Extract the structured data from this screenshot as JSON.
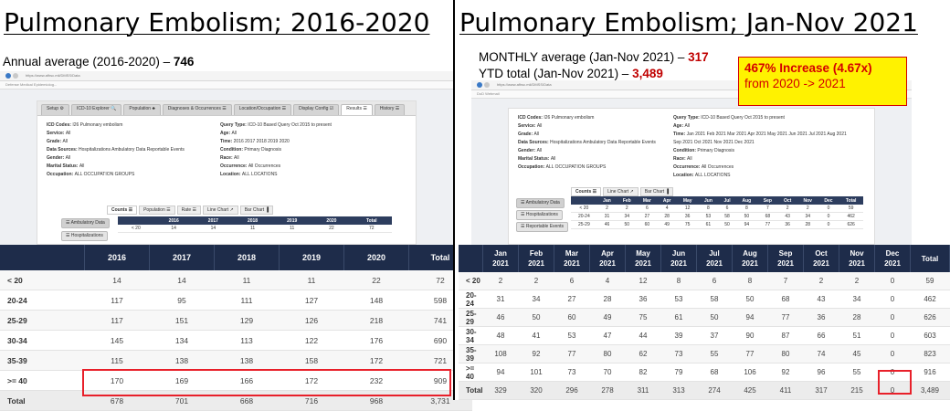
{
  "left": {
    "title": "Pulmonary Embolism; 2016-2020",
    "annual_label": "Annual average (2016-2020) – ",
    "annual_value": "746",
    "browser": {
      "url": "https://www.afhsc.mil/DMSS/Data",
      "bookmark": "Defense Medical Epidemiolog..."
    },
    "app_tabs": [
      "Setup ⚙",
      "ICD-10 Explorer 🔍",
      "Population ♣",
      "Diagnoses & Occurrences ☰",
      "Location/Occupation ☰",
      "Display Config ☑",
      "Results ☰",
      "History ☰"
    ],
    "info_left": [
      {
        "label": "ICD Codes:",
        "value": "I26 Pulmonary embolism"
      },
      {
        "label": "Service:",
        "value": "All"
      },
      {
        "label": "Grade:",
        "value": "All"
      },
      {
        "label": "Data Sources:",
        "value": "Hospitalizations Ambulatory Data Reportable Events"
      },
      {
        "label": "Gender:",
        "value": "All"
      },
      {
        "label": "Marital Status:",
        "value": "All"
      },
      {
        "label": "Occupation:",
        "value": "ALL OCCUPATION GROUPS"
      }
    ],
    "info_right": [
      {
        "label": "Query Type:",
        "value": "ICD-10 Based Query Oct 2015 to present"
      },
      {
        "label": "Age:",
        "value": "All"
      },
      {
        "label": "Time:",
        "value": "2016 2017 2018 2019 2020"
      },
      {
        "label": "Condition:",
        "value": "Primary Diagnosis"
      },
      {
        "label": "Race:",
        "value": "All"
      },
      {
        "label": "Occurrence:",
        "value": "All Occurrences"
      },
      {
        "label": "Location:",
        "value": "ALL LOCATIONS"
      }
    ],
    "chart_tabs": [
      "Counts ☰",
      "Population ☰",
      "Rate ☰",
      "Line Chart ↗",
      "Bar Chart ▐"
    ],
    "side_buttons": [
      "☰ Ambulatory Data",
      "☰ Hospitalizations"
    ],
    "mini_headers": [
      "",
      "2016",
      "2017",
      "2018",
      "2019",
      "2020",
      "Total"
    ],
    "mini_row": [
      "< 20",
      "14",
      "14",
      "11",
      "11",
      "22",
      "72"
    ],
    "table": {
      "headers": [
        "",
        "2016",
        "2017",
        "2018",
        "2019",
        "2020",
        "Total"
      ],
      "rows": [
        [
          "< 20",
          "14",
          "14",
          "11",
          "11",
          "22",
          "72"
        ],
        [
          "20-24",
          "117",
          "95",
          "111",
          "127",
          "148",
          "598"
        ],
        [
          "25-29",
          "117",
          "151",
          "129",
          "126",
          "218",
          "741"
        ],
        [
          "30-34",
          "145",
          "134",
          "113",
          "122",
          "176",
          "690"
        ],
        [
          "35-39",
          "115",
          "138",
          "138",
          "158",
          "172",
          "721"
        ],
        [
          ">= 40",
          "170",
          "169",
          "166",
          "172",
          "232",
          "909"
        ],
        [
          "Total",
          "678",
          "701",
          "668",
          "716",
          "968",
          "3,731"
        ]
      ]
    },
    "highlight_color": "#e8202a"
  },
  "right": {
    "title": "Pulmonary Embolism; Jan-Nov 2021",
    "monthly_label": "MONTHLY average (Jan-Nov 2021) – ",
    "monthly_value": "317",
    "ytd_label": "YTD total (Jan-Nov 2021) – ",
    "ytd_value": "3,489",
    "callout_line1": "467% Increase (4.67x)",
    "callout_line2": "from 2020 -> 2021",
    "browser": {
      "url": "https://www.afhsc.mil/DMSS/Data",
      "bookmark": "DoD Webmail"
    },
    "info_left": [
      {
        "label": "ICD Codes:",
        "value": "I26 Pulmonary embolism"
      },
      {
        "label": "Service:",
        "value": "All"
      },
      {
        "label": "Grade:",
        "value": "All"
      },
      {
        "label": "Data Sources:",
        "value": "Hospitalizations Ambulatory Data Reportable Events"
      },
      {
        "label": "Gender:",
        "value": "All"
      },
      {
        "label": "Marital Status:",
        "value": "All"
      },
      {
        "label": "Occupation:",
        "value": "ALL OCCUPATION GROUPS"
      }
    ],
    "info_right": [
      {
        "label": "Query Type:",
        "value": "ICD-10 Based Query Oct 2015 to present"
      },
      {
        "label": "Age:",
        "value": "All"
      },
      {
        "label": "Time:",
        "value": "Jan 2021 Feb 2021 Mar 2021 Apr 2021 May 2021 Jun 2021 Jul 2021 Aug 2021"
      },
      {
        "label": "",
        "value": "Sep 2021 Oct 2021 Nov 2021 Dec 2021"
      },
      {
        "label": "Condition:",
        "value": "Primary Diagnosis"
      },
      {
        "label": "Race:",
        "value": "All"
      },
      {
        "label": "Occurrence:",
        "value": "All Occurrences"
      },
      {
        "label": "Location:",
        "value": "ALL LOCATIONS"
      }
    ],
    "chart_tabs": [
      "Counts ☰",
      "Line Chart ↗",
      "Bar Chart ▐"
    ],
    "side_buttons": [
      "☰ Ambulatory Data",
      "☰ Hospitalizations",
      "☰ Reportable Events"
    ],
    "mini_headers": [
      "",
      "Jan",
      "Feb",
      "Mar",
      "Apr",
      "May",
      "Jun",
      "Jul",
      "Aug",
      "Sep",
      "Oct",
      "Nov",
      "Dec",
      "Total"
    ],
    "mini_rows": [
      [
        "< 20",
        "2",
        "2",
        "6",
        "4",
        "12",
        "8",
        "6",
        "8",
        "7",
        "2",
        "2",
        "0",
        "59"
      ],
      [
        "20-24",
        "31",
        "34",
        "27",
        "28",
        "36",
        "53",
        "58",
        "50",
        "68",
        "43",
        "34",
        "0",
        "462"
      ],
      [
        "25-29",
        "46",
        "50",
        "60",
        "49",
        "75",
        "61",
        "50",
        "94",
        "77",
        "36",
        "28",
        "0",
        "626"
      ]
    ],
    "table": {
      "headers": [
        {
          "m": "",
          "y": ""
        },
        {
          "m": "Jan",
          "y": "2021"
        },
        {
          "m": "Feb",
          "y": "2021"
        },
        {
          "m": "Mar",
          "y": "2021"
        },
        {
          "m": "Apr",
          "y": "2021"
        },
        {
          "m": "May",
          "y": "2021"
        },
        {
          "m": "Jun",
          "y": "2021"
        },
        {
          "m": "Jul",
          "y": "2021"
        },
        {
          "m": "Aug",
          "y": "2021"
        },
        {
          "m": "Sep",
          "y": "2021"
        },
        {
          "m": "Oct",
          "y": "2021"
        },
        {
          "m": "Nov",
          "y": "2021"
        },
        {
          "m": "Dec",
          "y": "2021"
        },
        {
          "m": "Total",
          "y": ""
        }
      ],
      "rows": [
        [
          "< 20",
          "2",
          "2",
          "6",
          "4",
          "12",
          "8",
          "6",
          "8",
          "7",
          "2",
          "2",
          "0",
          "59"
        ],
        [
          "20-24",
          "31",
          "34",
          "27",
          "28",
          "36",
          "53",
          "58",
          "50",
          "68",
          "43",
          "34",
          "0",
          "462"
        ],
        [
          "25-29",
          "46",
          "50",
          "60",
          "49",
          "75",
          "61",
          "50",
          "94",
          "77",
          "36",
          "28",
          "0",
          "626"
        ],
        [
          "30-34",
          "48",
          "41",
          "53",
          "47",
          "44",
          "39",
          "37",
          "90",
          "87",
          "66",
          "51",
          "0",
          "603"
        ],
        [
          "35-39",
          "108",
          "92",
          "77",
          "80",
          "62",
          "73",
          "55",
          "77",
          "80",
          "74",
          "45",
          "0",
          "823"
        ],
        [
          ">= 40",
          "94",
          "101",
          "73",
          "70",
          "82",
          "79",
          "68",
          "106",
          "92",
          "96",
          "55",
          "0",
          "916"
        ],
        [
          "Total",
          "329",
          "320",
          "296",
          "278",
          "311",
          "313",
          "274",
          "425",
          "411",
          "317",
          "215",
          "0",
          "3,489"
        ]
      ]
    }
  }
}
